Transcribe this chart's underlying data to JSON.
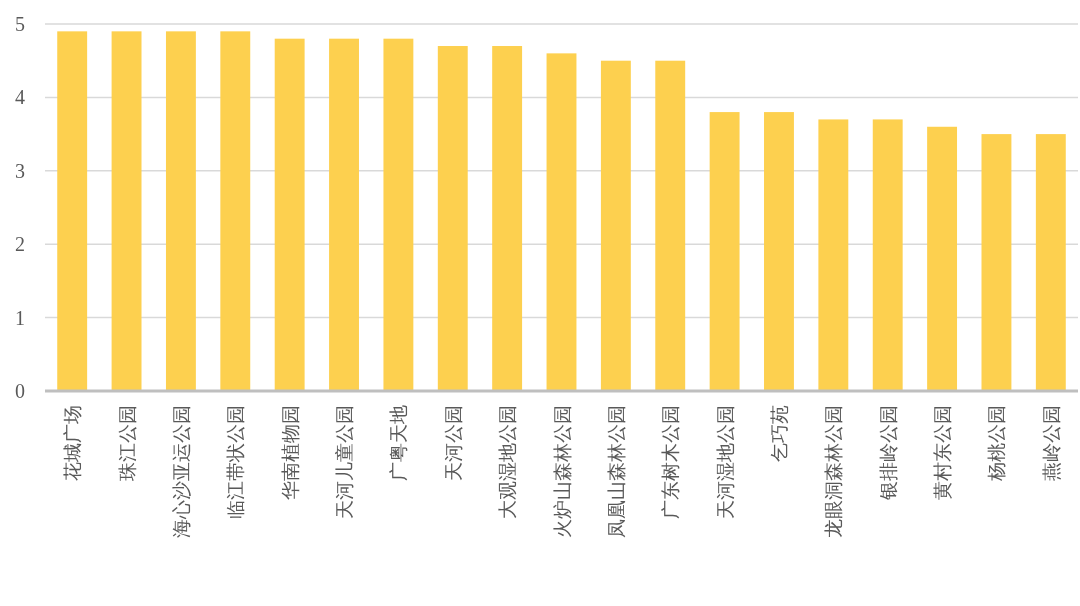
{
  "chart_data": {
    "type": "bar",
    "categories": [
      "花城广场",
      "珠江公园",
      "海心沙亚运公园",
      "临江带状公园",
      "华南植物园",
      "天河儿童公园",
      "广粤天地",
      "天河公园",
      "大观湿地公园",
      "火炉山森林公园",
      "凤凰山森林公园",
      "广东树木公园",
      "天河湿地公园",
      "乞巧苑",
      "龙眼洞森林公园",
      "银排岭公园",
      "黄村东公园",
      "杨桃公园",
      "燕岭公园"
    ],
    "values": [
      4.9,
      4.9,
      4.9,
      4.9,
      4.8,
      4.8,
      4.8,
      4.7,
      4.7,
      4.6,
      4.5,
      4.5,
      3.8,
      3.8,
      3.7,
      3.7,
      3.6,
      3.5,
      3.5
    ],
    "color": "#fdd04f",
    "ylim": [
      0,
      5
    ],
    "yticks": [
      0,
      1,
      2,
      3,
      4,
      5
    ],
    "grid": "y"
  }
}
